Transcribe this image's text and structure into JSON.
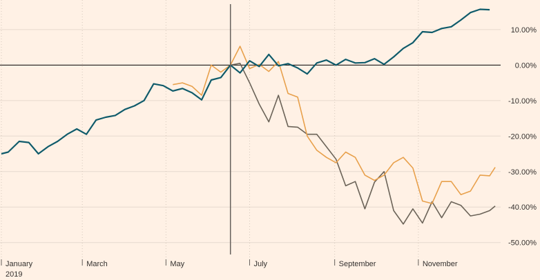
{
  "chart_data": {
    "type": "line",
    "xlim": [
      "2019-01-01",
      "2019-12-31"
    ],
    "ylim": [
      -0.52,
      0.16
    ],
    "yticks": [
      0.1,
      0.0,
      -0.1,
      -0.2,
      -0.3,
      -0.4,
      -0.5
    ],
    "ytick_labels": [
      "10.00%",
      "0.00%",
      "-10.00%",
      "-20.00%",
      "-30.00%",
      "-40.00%",
      "-50.00%"
    ],
    "xticks": [
      "2019-01-01",
      "2019-03-01",
      "2019-05-01",
      "2019-07-01",
      "2019-09-01",
      "2019-11-01"
    ],
    "xtick_labels": [
      "January",
      "March",
      "May",
      "July",
      "September",
      "November"
    ],
    "x_sublabel": "2019",
    "reference_date": "2019-06-17",
    "zero_line": true,
    "series": [
      {
        "color": "#0f5b6b",
        "points": [
          [
            "2019-01-01",
            -0.25
          ],
          [
            "2019-01-06",
            -0.245
          ],
          [
            "2019-01-14",
            -0.215
          ],
          [
            "2019-01-21",
            -0.218
          ],
          [
            "2019-01-28",
            -0.25
          ],
          [
            "2019-02-04",
            -0.23
          ],
          [
            "2019-02-11",
            -0.215
          ],
          [
            "2019-02-18",
            -0.195
          ],
          [
            "2019-02-25",
            -0.18
          ],
          [
            "2019-03-04",
            -0.195
          ],
          [
            "2019-03-11",
            -0.155
          ],
          [
            "2019-03-18",
            -0.147
          ],
          [
            "2019-03-25",
            -0.142
          ],
          [
            "2019-04-01",
            -0.125
          ],
          [
            "2019-04-08",
            -0.115
          ],
          [
            "2019-04-15",
            -0.1
          ],
          [
            "2019-04-22",
            -0.053
          ],
          [
            "2019-04-29",
            -0.058
          ],
          [
            "2019-05-06",
            -0.073
          ],
          [
            "2019-05-13",
            -0.066
          ],
          [
            "2019-05-20",
            -0.078
          ],
          [
            "2019-05-27",
            -0.098
          ],
          [
            "2019-06-03",
            -0.042
          ],
          [
            "2019-06-10",
            -0.035
          ],
          [
            "2019-06-17",
            0.0
          ],
          [
            "2019-06-24",
            -0.022
          ],
          [
            "2019-07-01",
            0.012
          ],
          [
            "2019-07-08",
            -0.004
          ],
          [
            "2019-07-15",
            0.03
          ],
          [
            "2019-07-22",
            -0.002
          ],
          [
            "2019-07-29",
            0.004
          ],
          [
            "2019-08-05",
            -0.008
          ],
          [
            "2019-08-12",
            -0.025
          ],
          [
            "2019-08-19",
            0.006
          ],
          [
            "2019-08-26",
            0.014
          ],
          [
            "2019-09-02",
            0.0
          ],
          [
            "2019-09-09",
            0.016
          ],
          [
            "2019-09-16",
            0.006
          ],
          [
            "2019-09-23",
            0.007
          ],
          [
            "2019-09-30",
            0.018
          ],
          [
            "2019-10-07",
            0.002
          ],
          [
            "2019-10-14",
            0.023
          ],
          [
            "2019-10-21",
            0.047
          ],
          [
            "2019-10-28",
            0.063
          ],
          [
            "2019-11-04",
            0.094
          ],
          [
            "2019-11-11",
            0.092
          ],
          [
            "2019-11-18",
            0.103
          ],
          [
            "2019-11-25",
            0.108
          ],
          [
            "2019-12-02",
            0.127
          ],
          [
            "2019-12-09",
            0.148
          ],
          [
            "2019-12-16",
            0.157
          ],
          [
            "2019-12-23",
            0.156
          ]
        ]
      },
      {
        "color": "#e8a04b",
        "points": [
          [
            "2019-05-06",
            -0.055
          ],
          [
            "2019-05-13",
            -0.05
          ],
          [
            "2019-05-20",
            -0.06
          ],
          [
            "2019-05-27",
            -0.085
          ],
          [
            "2019-06-03",
            0.0
          ],
          [
            "2019-06-10",
            -0.02
          ],
          [
            "2019-06-17",
            0.0
          ],
          [
            "2019-06-24",
            0.053
          ],
          [
            "2019-07-01",
            -0.01
          ],
          [
            "2019-07-08",
            0.002
          ],
          [
            "2019-07-15",
            -0.018
          ],
          [
            "2019-07-22",
            0.01
          ],
          [
            "2019-07-29",
            -0.08
          ],
          [
            "2019-08-05",
            -0.09
          ],
          [
            "2019-08-12",
            -0.2
          ],
          [
            "2019-08-19",
            -0.24
          ],
          [
            "2019-08-26",
            -0.26
          ],
          [
            "2019-09-02",
            -0.275
          ],
          [
            "2019-09-09",
            -0.245
          ],
          [
            "2019-09-16",
            -0.26
          ],
          [
            "2019-09-23",
            -0.31
          ],
          [
            "2019-09-30",
            -0.325
          ],
          [
            "2019-10-07",
            -0.31
          ],
          [
            "2019-10-14",
            -0.275
          ],
          [
            "2019-10-21",
            -0.26
          ],
          [
            "2019-10-28",
            -0.29
          ],
          [
            "2019-11-04",
            -0.383
          ],
          [
            "2019-11-11",
            -0.39
          ],
          [
            "2019-11-18",
            -0.328
          ],
          [
            "2019-11-25",
            -0.328
          ],
          [
            "2019-12-02",
            -0.365
          ],
          [
            "2019-12-09",
            -0.355
          ],
          [
            "2019-12-16",
            -0.31
          ],
          [
            "2019-12-23",
            -0.312
          ],
          [
            "2019-12-27",
            -0.288
          ]
        ]
      },
      {
        "color": "#6b6358",
        "points": [
          [
            "2019-06-17",
            0.0
          ],
          [
            "2019-06-24",
            0.005
          ],
          [
            "2019-07-01",
            -0.05
          ],
          [
            "2019-07-08",
            -0.11
          ],
          [
            "2019-07-15",
            -0.16
          ],
          [
            "2019-07-22",
            -0.085
          ],
          [
            "2019-07-29",
            -0.173
          ],
          [
            "2019-08-05",
            -0.175
          ],
          [
            "2019-08-12",
            -0.195
          ],
          [
            "2019-08-19",
            -0.195
          ],
          [
            "2019-08-26",
            -0.23
          ],
          [
            "2019-09-02",
            -0.265
          ],
          [
            "2019-09-09",
            -0.34
          ],
          [
            "2019-09-16",
            -0.328
          ],
          [
            "2019-09-23",
            -0.405
          ],
          [
            "2019-09-30",
            -0.33
          ],
          [
            "2019-10-07",
            -0.3
          ],
          [
            "2019-10-14",
            -0.41
          ],
          [
            "2019-10-21",
            -0.448
          ],
          [
            "2019-10-28",
            -0.405
          ],
          [
            "2019-11-04",
            -0.445
          ],
          [
            "2019-11-11",
            -0.385
          ],
          [
            "2019-11-18",
            -0.43
          ],
          [
            "2019-11-25",
            -0.385
          ],
          [
            "2019-12-02",
            -0.395
          ],
          [
            "2019-12-09",
            -0.425
          ],
          [
            "2019-12-16",
            -0.42
          ],
          [
            "2019-12-23",
            -0.41
          ],
          [
            "2019-12-27",
            -0.397
          ]
        ]
      }
    ]
  }
}
